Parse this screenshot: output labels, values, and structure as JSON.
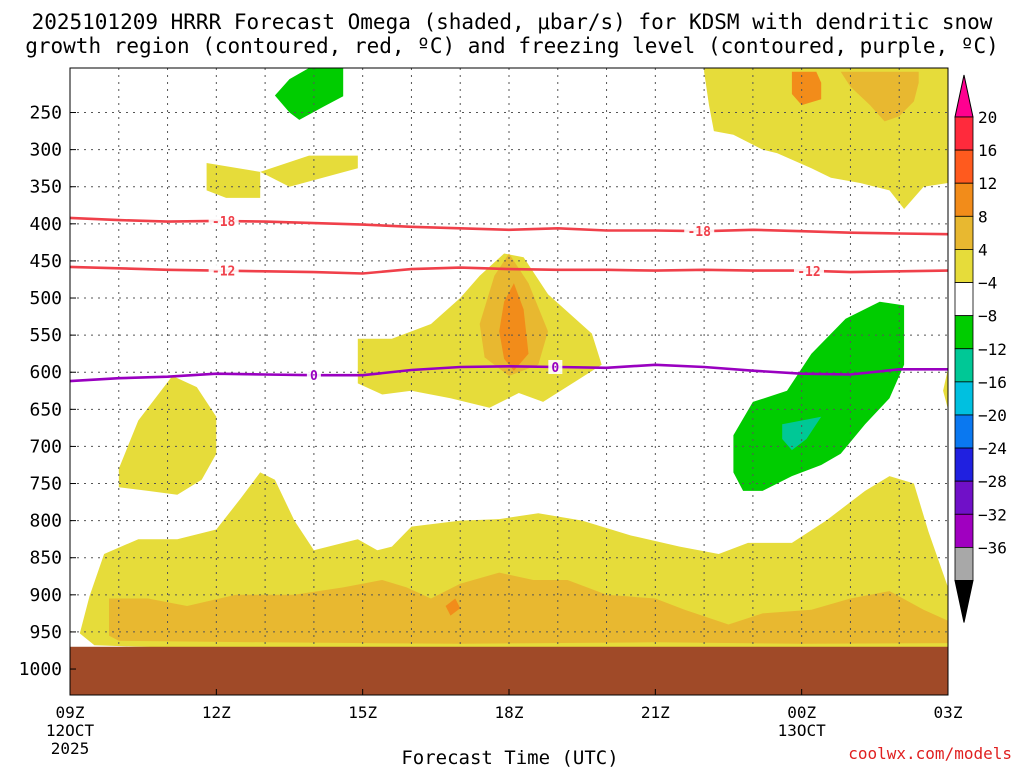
{
  "chart_data": {
    "type": "heatmap",
    "title_line1": "2025101209 HRRR Forecast Omega (shaded, μbar/s) for KDSM with dendritic snow",
    "title_line2": "growth region (contoured, red, ºC) and freezing level (contoured, purple, ºC)",
    "xlabel": "Forecast Time (UTC)",
    "credit": "coolwx.com/models",
    "xlim": [
      0,
      18
    ],
    "ylim": [
      1035,
      190
    ],
    "x_ticks": [
      {
        "x": 0,
        "label": "09Z",
        "sub1": "12OCT",
        "sub2": "2025"
      },
      {
        "x": 3,
        "label": "12Z"
      },
      {
        "x": 6,
        "label": "15Z"
      },
      {
        "x": 9,
        "label": "18Z"
      },
      {
        "x": 12,
        "label": "21Z"
      },
      {
        "x": 15,
        "label": "00Z",
        "sub1": "13OCT"
      },
      {
        "x": 18,
        "label": "03Z"
      }
    ],
    "y_ticks": [
      250,
      300,
      350,
      400,
      450,
      500,
      550,
      600,
      650,
      700,
      750,
      800,
      850,
      900,
      950,
      1000
    ],
    "legend": {
      "labels": [
        "20",
        "16",
        "12",
        "8",
        "4",
        "−4",
        "−8",
        "−12",
        "−16",
        "−20",
        "−24",
        "−28",
        "−32",
        "−36"
      ],
      "colors": [
        "#ff0090",
        "#ff2a3c",
        "#ff5a1e",
        "#f28c1a",
        "#e8b830",
        "#e6dc3a",
        "#ffffff",
        "#00cc00",
        "#00c896",
        "#00c0e0",
        "#0a78f0",
        "#2020e0",
        "#7010c8",
        "#a000c0",
        "#a8a8a8",
        "#000000"
      ]
    },
    "omega_areas": [
      {
        "level": "4",
        "color": "#e6dc3a",
        "points": [
          [
            13.0,
            195
          ],
          [
            13.1,
            240
          ],
          [
            13.2,
            275
          ],
          [
            13.6,
            280
          ],
          [
            14.2,
            300
          ],
          [
            14.5,
            305
          ],
          [
            15.2,
            325
          ],
          [
            15.6,
            338
          ],
          [
            16.2,
            345
          ],
          [
            16.8,
            355
          ],
          [
            17.1,
            380
          ],
          [
            17.5,
            350
          ],
          [
            18,
            345
          ],
          [
            18,
            190
          ],
          [
            13,
            190
          ]
        ]
      },
      {
        "level": "4",
        "color": "#e6dc3a",
        "points": [
          [
            2.8,
            318
          ],
          [
            3.9,
            330
          ],
          [
            3.9,
            365
          ],
          [
            3.2,
            365
          ],
          [
            2.8,
            355
          ]
        ]
      },
      {
        "level": "4",
        "color": "#e6dc3a",
        "points": [
          [
            3.9,
            330
          ],
          [
            4.9,
            308
          ],
          [
            5.9,
            308
          ],
          [
            5.9,
            325
          ],
          [
            4.5,
            350
          ]
        ]
      },
      {
        "level": "4",
        "color": "#e6dc3a",
        "points": [
          [
            8.4,
            470
          ],
          [
            8.9,
            440
          ],
          [
            9.3,
            445
          ],
          [
            9.8,
            495
          ],
          [
            10.7,
            548
          ],
          [
            10.9,
            590
          ],
          [
            10.3,
            615
          ],
          [
            9.7,
            640
          ],
          [
            9.2,
            628
          ],
          [
            8.6,
            648
          ],
          [
            7.8,
            635
          ],
          [
            7.0,
            625
          ],
          [
            6.4,
            630
          ],
          [
            5.9,
            615
          ],
          [
            5.9,
            555
          ],
          [
            6.6,
            555
          ],
          [
            7.4,
            535
          ],
          [
            8.0,
            500
          ]
        ]
      },
      {
        "level": "4",
        "color": "#e6dc3a",
        "points": [
          [
            1.0,
            730
          ],
          [
            1.4,
            665
          ],
          [
            2.1,
            605
          ],
          [
            2.6,
            620
          ],
          [
            3.0,
            660
          ],
          [
            3.0,
            710
          ],
          [
            2.7,
            745
          ],
          [
            2.2,
            765
          ],
          [
            1.6,
            760
          ],
          [
            1.0,
            755
          ]
        ]
      },
      {
        "level": "4",
        "color": "#e6dc3a",
        "points": [
          [
            18,
            595
          ],
          [
            17.9,
            625
          ],
          [
            18,
            650
          ]
        ]
      },
      {
        "level": "4",
        "color": "#e6dc3a",
        "points": [
          [
            0.2,
            952
          ],
          [
            0.4,
            902
          ],
          [
            0.7,
            845
          ],
          [
            1.4,
            825
          ],
          [
            2.2,
            825
          ],
          [
            3.0,
            812
          ],
          [
            3.5,
            770
          ],
          [
            3.9,
            735
          ],
          [
            4.2,
            745
          ],
          [
            4.6,
            800
          ],
          [
            5.0,
            840
          ],
          [
            5.6,
            830
          ],
          [
            5.9,
            825
          ],
          [
            6.3,
            840
          ],
          [
            6.6,
            835
          ],
          [
            7.0,
            808
          ],
          [
            8.0,
            800
          ],
          [
            8.8,
            798
          ],
          [
            9.6,
            790
          ],
          [
            10.5,
            800
          ],
          [
            11.5,
            820
          ],
          [
            12.5,
            835
          ],
          [
            13.3,
            845
          ],
          [
            13.9,
            830
          ],
          [
            14.8,
            830
          ],
          [
            15.5,
            800
          ],
          [
            16.3,
            760
          ],
          [
            16.8,
            740
          ],
          [
            17.3,
            750
          ],
          [
            17.6,
            815
          ],
          [
            18,
            890
          ],
          [
            18,
            975
          ],
          [
            15,
            978
          ],
          [
            12,
            975
          ],
          [
            8,
            978
          ],
          [
            4,
            975
          ],
          [
            0.5,
            968
          ]
        ]
      },
      {
        "level": "8",
        "color": "#e8b830",
        "points": [
          [
            15.8,
            195
          ],
          [
            16.0,
            215
          ],
          [
            16.4,
            240
          ],
          [
            16.7,
            262
          ],
          [
            17.0,
            255
          ],
          [
            17.3,
            235
          ],
          [
            17.4,
            210
          ],
          [
            17.4,
            195
          ]
        ]
      },
      {
        "level": "8",
        "color": "#e8b830",
        "points": [
          [
            8.7,
            470
          ],
          [
            9.0,
            440
          ],
          [
            9.4,
            480
          ],
          [
            9.8,
            545
          ],
          [
            9.6,
            590
          ],
          [
            9.0,
            605
          ],
          [
            8.5,
            580
          ],
          [
            8.4,
            535
          ]
        ]
      },
      {
        "level": "8",
        "color": "#e8b830",
        "points": [
          [
            0.8,
            955
          ],
          [
            0.8,
            905
          ],
          [
            1.6,
            905
          ],
          [
            2.4,
            915
          ],
          [
            3.4,
            900
          ],
          [
            4.6,
            900
          ],
          [
            5.6,
            890
          ],
          [
            6.4,
            880
          ],
          [
            6.9,
            890
          ],
          [
            7.4,
            905
          ],
          [
            8.0,
            885
          ],
          [
            8.8,
            870
          ],
          [
            9.5,
            880
          ],
          [
            10.2,
            880
          ],
          [
            11.0,
            900
          ],
          [
            12.0,
            905
          ],
          [
            12.6,
            920
          ],
          [
            13.5,
            940
          ],
          [
            14.2,
            925
          ],
          [
            15.2,
            920
          ],
          [
            16.0,
            905
          ],
          [
            16.8,
            895
          ],
          [
            17.5,
            920
          ],
          [
            18,
            935
          ],
          [
            18,
            965
          ],
          [
            15,
            966
          ],
          [
            12,
            964
          ],
          [
            8,
            966
          ],
          [
            4,
            964
          ],
          [
            1.0,
            962
          ]
        ]
      },
      {
        "level": "12",
        "color": "#f28c1a",
        "points": [
          [
            14.8,
            195
          ],
          [
            14.8,
            225
          ],
          [
            15.0,
            240
          ],
          [
            15.4,
            232
          ],
          [
            15.4,
            210
          ],
          [
            15.3,
            195
          ]
        ]
      },
      {
        "level": "12",
        "color": "#f28c1a",
        "points": [
          [
            8.8,
            545
          ],
          [
            8.9,
            505
          ],
          [
            9.1,
            480
          ],
          [
            9.3,
            515
          ],
          [
            9.4,
            575
          ],
          [
            9.1,
            598
          ],
          [
            8.9,
            582
          ]
        ]
      },
      {
        "level": "12",
        "color": "#f28c1a",
        "points": [
          [
            7.7,
            915
          ],
          [
            7.9,
            905
          ],
          [
            8.0,
            918
          ],
          [
            7.8,
            928
          ]
        ]
      },
      {
        "level": "-4",
        "color": "#00cc00",
        "points": [
          [
            4.2,
            227
          ],
          [
            4.5,
            205
          ],
          [
            4.9,
            190
          ],
          [
            5.6,
            190
          ],
          [
            5.6,
            228
          ],
          [
            5.2,
            242
          ],
          [
            4.7,
            260
          ],
          [
            4.5,
            250
          ]
        ]
      },
      {
        "level": "-4",
        "color": "#00cc00",
        "points": [
          [
            13.6,
            735
          ],
          [
            13.6,
            685
          ],
          [
            14.0,
            640
          ],
          [
            14.7,
            625
          ],
          [
            15.2,
            575
          ],
          [
            15.9,
            528
          ],
          [
            16.6,
            505
          ],
          [
            17.1,
            510
          ],
          [
            17.1,
            590
          ],
          [
            16.8,
            635
          ],
          [
            16.3,
            670
          ],
          [
            15.8,
            710
          ],
          [
            15.4,
            725
          ],
          [
            14.8,
            740
          ],
          [
            14.2,
            760
          ],
          [
            13.8,
            760
          ]
        ]
      },
      {
        "level": "-8",
        "color": "#00c896",
        "points": [
          [
            14.6,
            690
          ],
          [
            14.6,
            670
          ],
          [
            15.0,
            665
          ],
          [
            15.4,
            660
          ],
          [
            15.1,
            690
          ],
          [
            14.8,
            705
          ]
        ]
      }
    ],
    "isotherms": [
      {
        "name": "dgz_top",
        "value": "-18",
        "color": "#f0404a",
        "x": [
          0,
          1,
          2,
          3,
          4,
          5,
          6,
          7,
          8,
          9,
          10,
          11,
          12,
          13,
          14,
          15,
          16,
          17,
          18
        ],
        "y": [
          392,
          395,
          397,
          396,
          397,
          399,
          401,
          404,
          406,
          408,
          406,
          409,
          409,
          410,
          408,
          410,
          412,
          413,
          414
        ],
        "label_x": [
          3.15,
          12.9
        ]
      },
      {
        "name": "dgz_bottom",
        "value": "-12",
        "color": "#f0404a",
        "x": [
          0,
          1,
          2,
          3,
          4,
          5,
          6,
          7,
          8,
          9,
          10,
          11,
          12,
          13,
          14,
          15,
          16,
          17,
          18
        ],
        "y": [
          458,
          460,
          462,
          463,
          464,
          465,
          467,
          461,
          459,
          461,
          462,
          462,
          463,
          462,
          463,
          463,
          465,
          464,
          463
        ],
        "label_x": [
          3.15,
          15.15
        ]
      },
      {
        "name": "freezing_level",
        "value": "0",
        "color": "#9900c0",
        "x": [
          0,
          1,
          2,
          3,
          4,
          5,
          6,
          7,
          8,
          9,
          10,
          11,
          12,
          13,
          14,
          15,
          16,
          17,
          18
        ],
        "y": [
          612,
          608,
          606,
          602,
          603,
          604,
          604,
          597,
          593,
          592,
          593,
          594,
          590,
          593,
          598,
          602,
          603,
          596,
          596
        ],
        "label_x": [
          5.0,
          9.95
        ]
      }
    ]
  }
}
